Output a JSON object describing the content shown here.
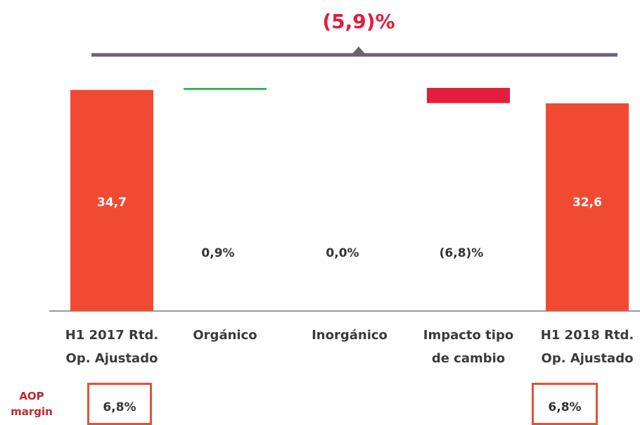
{
  "chart_data": {
    "type": "waterfall",
    "title": "(5,9)%",
    "categories": [
      "H1 2017 Rtd.\nOp. Ajustado",
      "Orgánico",
      "Inorgánico",
      "Impacto tipo\nde cambio",
      "H1 2018 Rtd.\nOp. Ajustado"
    ],
    "values": [
      34.7,
      0.9,
      0,
      -6.8,
      32.6
    ],
    "value_labels": [
      "34,7",
      "0,9%",
      "0,0%",
      "(6,8)%",
      "32,6"
    ],
    "colors": {
      "total": "#f04b32",
      "increase": "#2fb34a",
      "decrease": "#e31d3b"
    },
    "ylim": [
      0,
      36
    ],
    "margin_label": "AOP\nmargin",
    "margins": [
      "6,8%",
      "6,8%"
    ]
  }
}
